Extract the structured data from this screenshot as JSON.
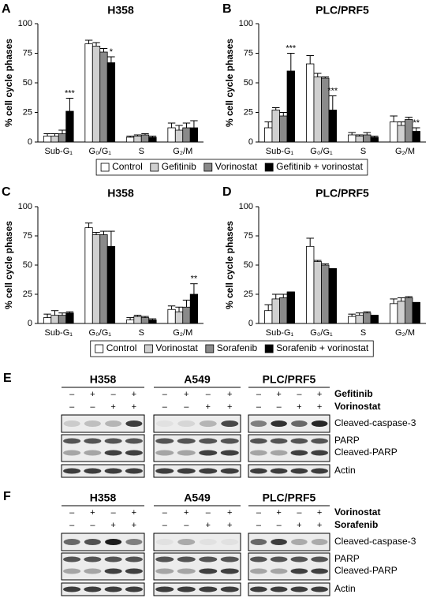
{
  "chart_data": [
    {
      "type": "bar",
      "label": "A",
      "title": "H358",
      "ylabel": "% cell cycle phases",
      "categories": [
        "Sub-G₁",
        "G₀/G₁",
        "S",
        "G₂/M"
      ],
      "series": [
        {
          "name": "Control",
          "color": "#ffffff",
          "values": [
            5,
            83,
            4,
            12
          ],
          "errors": [
            2,
            3,
            1,
            4
          ]
        },
        {
          "name": "Gefitinib",
          "color": "#d0d0d0",
          "values": [
            5,
            81,
            5,
            10
          ],
          "errors": [
            2,
            3,
            1,
            4
          ]
        },
        {
          "name": "Vorinostat",
          "color": "#8a8a8a",
          "values": [
            7,
            76,
            6,
            12
          ],
          "errors": [
            3,
            3,
            1,
            4
          ]
        },
        {
          "name": "Gefitinib + vorinostat",
          "color": "#000000",
          "values": [
            26,
            67,
            4,
            12
          ],
          "errors": [
            11,
            5,
            1,
            6
          ]
        }
      ],
      "ylim": [
        0,
        100
      ],
      "yticks": [
        0,
        25,
        50,
        75,
        100
      ],
      "legend": true,
      "annotations": [
        {
          "text": "***",
          "category": "Sub-G₁",
          "series": "Gefitinib + vorinostat"
        },
        {
          "text": "*",
          "category": "G₀/G₁",
          "series": "Gefitinib + vorinostat"
        }
      ]
    },
    {
      "type": "bar",
      "label": "B",
      "title": "PLC/PRF5",
      "ylabel": "% cell cycle phases",
      "categories": [
        "Sub-G₁",
        "G₀/G₁",
        "S",
        "G₂/M"
      ],
      "series": [
        {
          "name": "Control",
          "color": "#ffffff",
          "values": [
            12,
            66,
            6,
            17
          ],
          "errors": [
            5,
            7,
            2,
            5
          ]
        },
        {
          "name": "Gefitinib",
          "color": "#d0d0d0",
          "values": [
            27,
            55,
            5,
            14
          ],
          "errors": [
            2,
            3,
            1,
            3
          ]
        },
        {
          "name": "Vorinostat",
          "color": "#8a8a8a",
          "values": [
            22,
            54,
            6,
            19
          ],
          "errors": [
            3,
            1,
            2,
            2
          ]
        },
        {
          "name": "Gefitinib + vorinostat",
          "color": "#000000",
          "values": [
            60,
            27,
            4,
            9
          ],
          "errors": [
            15,
            12,
            1,
            3
          ]
        }
      ],
      "ylim": [
        0,
        100
      ],
      "yticks": [
        0,
        25,
        50,
        75,
        100
      ],
      "legend": false,
      "annotations": [
        {
          "text": "***",
          "category": "Sub-G₁",
          "series": "Gefitinib + vorinostat"
        },
        {
          "text": "***",
          "category": "G₀/G₁",
          "series": "Gefitinib + vorinostat"
        },
        {
          "text": "**",
          "category": "G₂/M",
          "series": "Gefitinib + vorinostat"
        }
      ]
    },
    {
      "type": "bar",
      "label": "C",
      "title": "H358",
      "ylabel": "% cell cycle phases",
      "categories": [
        "Sub-G₁",
        "G₀/G₁",
        "S",
        "G₂/M"
      ],
      "series": [
        {
          "name": "Control",
          "color": "#ffffff",
          "values": [
            5,
            82,
            3,
            12
          ],
          "errors": [
            3,
            4,
            2,
            3
          ]
        },
        {
          "name": "Vorinostat",
          "color": "#d0d0d0",
          "values": [
            7,
            76,
            6,
            10
          ],
          "errors": [
            4,
            2,
            1,
            4
          ]
        },
        {
          "name": "Sorafenib",
          "color": "#8a8a8a",
          "values": [
            7,
            76,
            5,
            14
          ],
          "errors": [
            2,
            3,
            1,
            6
          ]
        },
        {
          "name": "Sorafenib + vorinostat",
          "color": "#000000",
          "values": [
            9,
            66,
            3,
            25
          ],
          "errors": [
            1,
            13,
            1,
            9
          ]
        }
      ],
      "ylim": [
        0,
        100
      ],
      "yticks": [
        0,
        25,
        50,
        75,
        100
      ],
      "legend": true,
      "annotations": [
        {
          "text": "**",
          "category": "G₂/M",
          "series": "Sorafenib + vorinostat"
        }
      ]
    },
    {
      "type": "bar",
      "label": "D",
      "title": "PLC/PRF5",
      "ylabel": "% cell cycle phases",
      "categories": [
        "Sub-G₁",
        "G₀/G₁",
        "S",
        "G₂/M"
      ],
      "series": [
        {
          "name": "Control",
          "color": "#ffffff",
          "values": [
            11,
            66,
            6,
            17
          ],
          "errors": [
            5,
            7,
            2,
            4
          ]
        },
        {
          "name": "Vorinostat",
          "color": "#d0d0d0",
          "values": [
            21,
            53,
            7,
            19
          ],
          "errors": [
            4,
            1,
            2,
            3
          ]
        },
        {
          "name": "Sorafenib",
          "color": "#8a8a8a",
          "values": [
            22,
            50,
            9,
            22
          ],
          "errors": [
            3,
            1,
            1,
            1
          ]
        },
        {
          "name": "Sorafenib + vorinostat",
          "color": "#000000",
          "values": [
            27,
            47,
            7,
            18
          ],
          "errors": [
            0,
            0,
            0,
            0
          ]
        }
      ],
      "ylim": [
        0,
        100
      ],
      "yticks": [
        0,
        25,
        50,
        75,
        100
      ],
      "legend": false,
      "annotations": []
    }
  ],
  "blots": [
    {
      "label": "E",
      "cell_lines": [
        "H358",
        "A549",
        "PLC/PRF5"
      ],
      "treatments": [
        {
          "name": "Gefitinib",
          "signs": [
            "–",
            "+",
            "–",
            "+"
          ]
        },
        {
          "name": "Vorinostat",
          "signs": [
            "–",
            "–",
            "+",
            "+"
          ]
        }
      ],
      "bands": [
        "Cleaved-caspase-3",
        "PARP",
        "Cleaved-PARP",
        "Actin"
      ]
    },
    {
      "label": "F",
      "cell_lines": [
        "H358",
        "A549",
        "PLC/PRF5"
      ],
      "treatments": [
        {
          "name": "Vorinostat",
          "signs": [
            "–",
            "+",
            "–",
            "+"
          ]
        },
        {
          "name": "Sorafenib",
          "signs": [
            "–",
            "–",
            "+",
            "+"
          ]
        }
      ],
      "bands": [
        "Cleaved-caspase-3",
        "PARP",
        "Cleaved-PARP",
        "Actin"
      ]
    }
  ]
}
